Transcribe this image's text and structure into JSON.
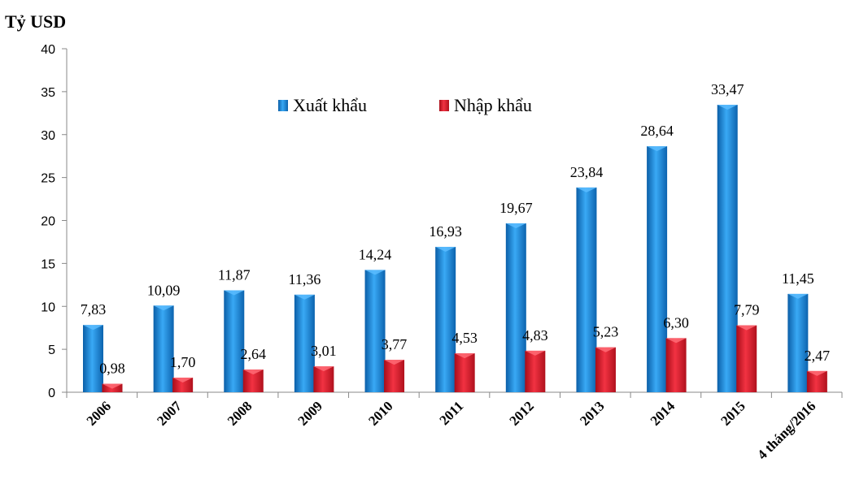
{
  "chart_data": {
    "type": "bar",
    "ylabel": "Tỷ USD",
    "ylim": [
      0,
      40
    ],
    "yticks": [
      0,
      5,
      10,
      15,
      20,
      25,
      30,
      35,
      40
    ],
    "categories": [
      "2006",
      "2007",
      "2008",
      "2009",
      "2010",
      "2011",
      "2012",
      "2013",
      "2014",
      "2015",
      "4 tháng/2016"
    ],
    "series": [
      {
        "name": "Xuất khẩu",
        "color": "#1f8fe0",
        "values": [
          7.83,
          10.09,
          11.87,
          11.36,
          14.24,
          16.93,
          19.67,
          23.84,
          28.64,
          33.47,
          11.45
        ],
        "labels": [
          "7,83",
          "10,09",
          "11,87",
          "11,36",
          "14,24",
          "16,93",
          "19,67",
          "23,84",
          "28,64",
          "33,47",
          "11,45"
        ]
      },
      {
        "name": "Nhập khẩu",
        "color": "#e0202f",
        "values": [
          0.98,
          1.7,
          2.64,
          3.01,
          3.77,
          4.53,
          4.83,
          5.23,
          6.3,
          7.79,
          2.47
        ],
        "labels": [
          "0,98",
          "1,70",
          "2,64",
          "3,01",
          "3,77",
          "4,53",
          "4,83",
          "5,23",
          "6,30",
          "7,79",
          "2,47"
        ]
      }
    ],
    "legend_position": "top-center",
    "grid": false
  }
}
